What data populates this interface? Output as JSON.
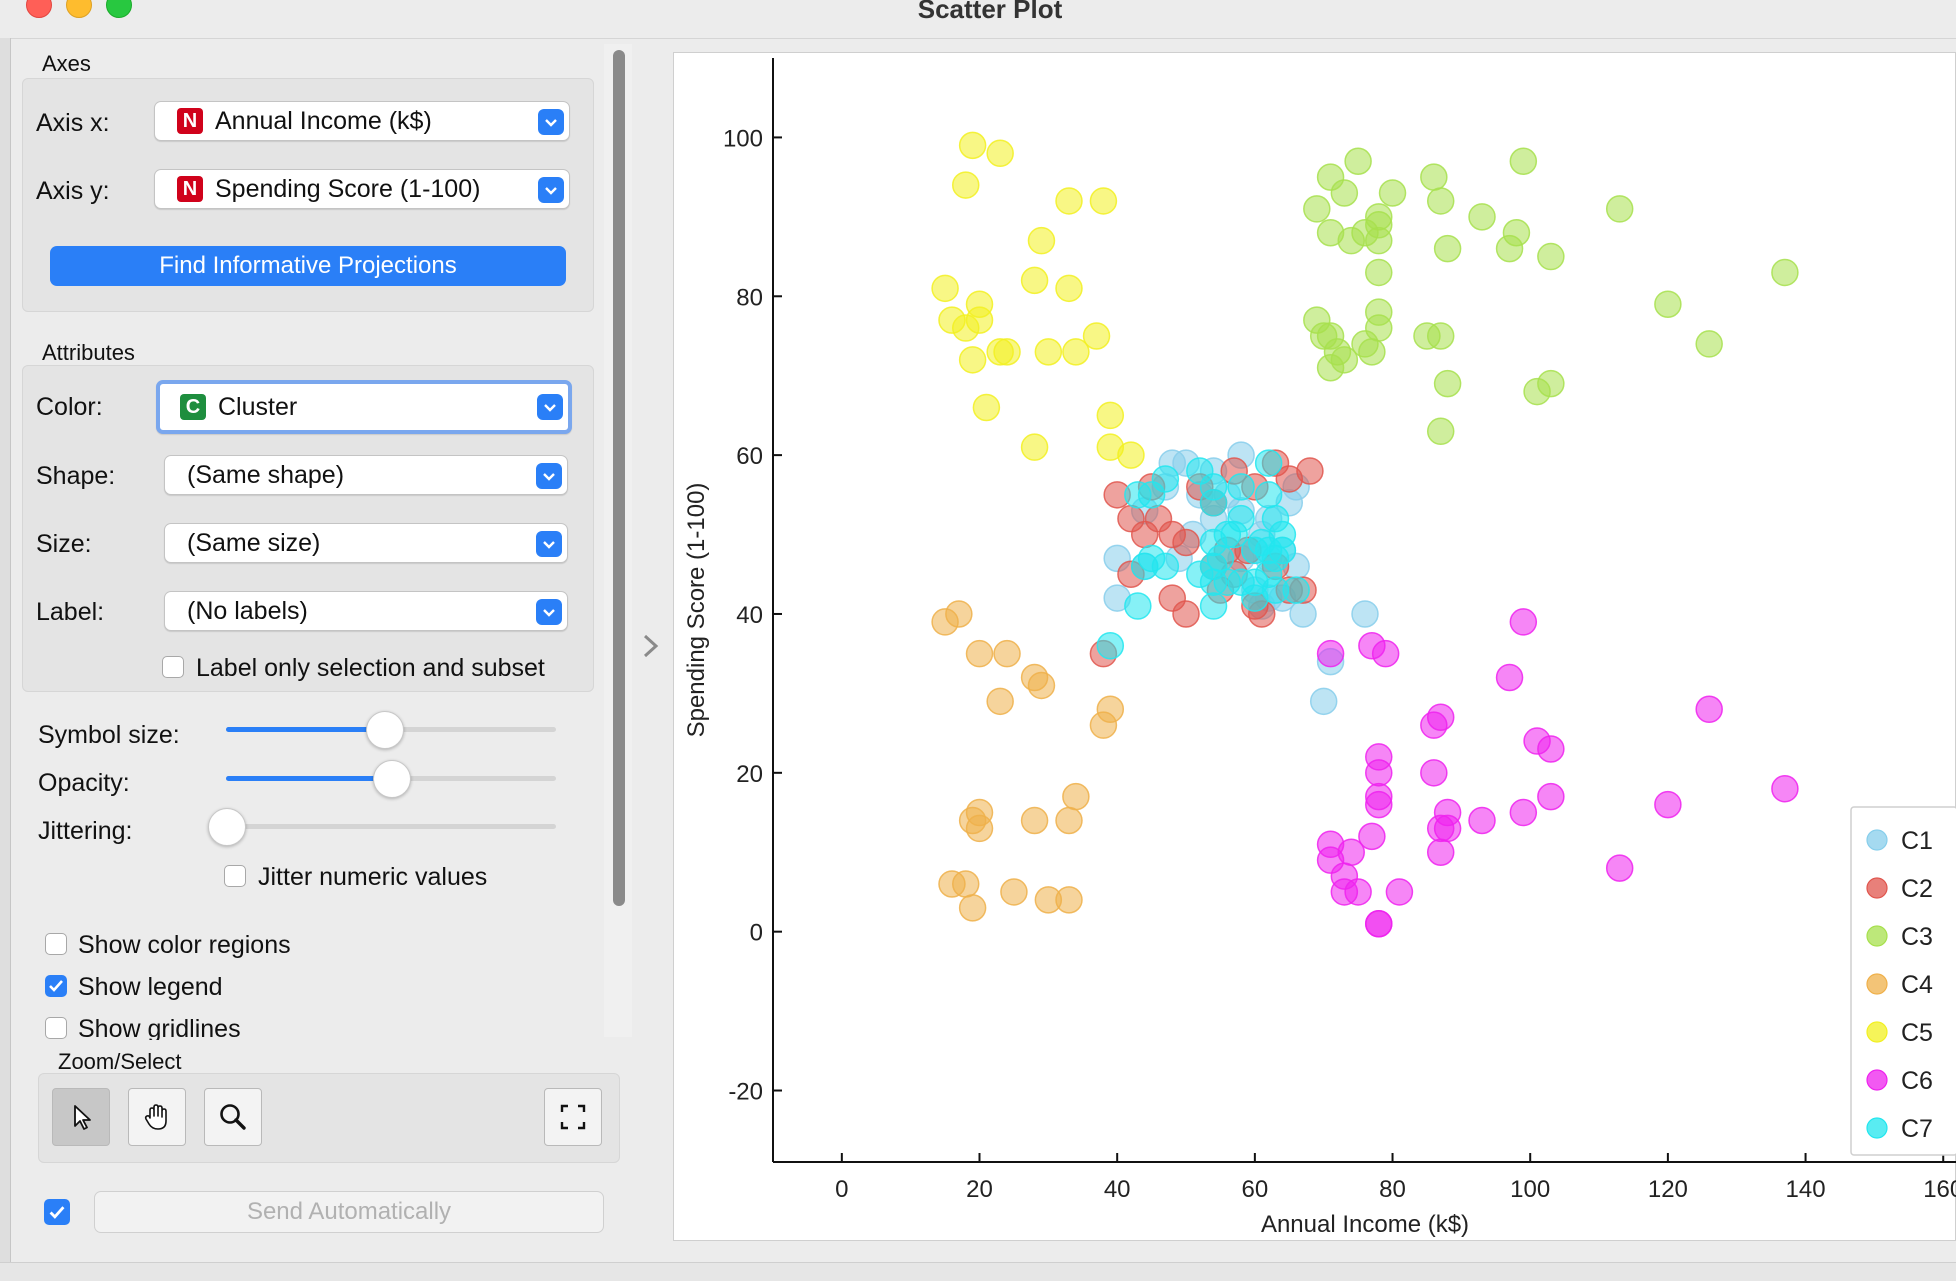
{
  "window": {
    "title": "Scatter Plot"
  },
  "axes_section": {
    "label": "Axes",
    "axis_x_label": "Axis x:",
    "axis_x_badge": "N",
    "axis_x_value": "Annual Income (k$)",
    "axis_y_label": "Axis y:",
    "axis_y_badge": "N",
    "axis_y_value": "Spending Score (1-100)",
    "find_button": "Find Informative Projections"
  },
  "attributes_section": {
    "label": "Attributes",
    "color_label": "Color:",
    "color_badge": "C",
    "color_value": "Cluster",
    "shape_label": "Shape:",
    "shape_value": "(Same shape)",
    "size_label": "Size:",
    "size_value": "(Same size)",
    "label_label": "Label:",
    "label_value": "(No labels)",
    "label_only_selection": "Label only selection and subset"
  },
  "sliders": {
    "symbol_size_label": "Symbol size:",
    "symbol_size_level": 0.48,
    "opacity_label": "Opacity:",
    "opacity_level": 0.5,
    "jittering_label": "Jittering:",
    "jittering_level": 0.0,
    "jitter_numeric": "Jitter numeric values"
  },
  "options": {
    "show_color_regions": "Show color regions",
    "show_color_regions_checked": false,
    "show_legend": "Show legend",
    "show_legend_checked": true,
    "show_gridlines": "Show gridlines",
    "show_gridlines_checked": false
  },
  "zoom_select": {
    "label": "Zoom/Select"
  },
  "send": {
    "label": "Send Automatically",
    "checked": true
  },
  "colors": {
    "accent": "#2a7ff7",
    "badge_numeric": "#d0021b",
    "badge_categorical": "#1e8e3e",
    "C1": "#87ceeb",
    "C2": "#e0564e",
    "C3": "#a7e04d",
    "C4": "#efb04a",
    "C5": "#f2f021",
    "C6": "#ee22ee",
    "C7": "#22e6ee"
  },
  "chart_data": {
    "type": "scatter",
    "xlabel": "Annual Income (k$)",
    "ylabel": "Spending Score (1-100)",
    "xlim": [
      -10,
      162
    ],
    "ylim": [
      -29,
      110
    ],
    "xticks": [
      "0",
      "20",
      "40",
      "60",
      "80",
      "100",
      "120",
      "140",
      "160"
    ],
    "yticks": [
      "-20",
      "0",
      "20",
      "40",
      "60",
      "80",
      "100"
    ],
    "xtick_values": [
      0,
      20,
      40,
      60,
      80,
      100,
      120,
      140,
      160
    ],
    "ytick_values": [
      -20,
      0,
      20,
      40,
      60,
      80,
      100
    ],
    "grid": false,
    "legend_position": "bottom-right",
    "series": [
      {
        "name": "C1",
        "color": "#87ceeb",
        "points": [
          [
            48,
            59
          ],
          [
            50,
            59
          ],
          [
            58,
            60
          ],
          [
            54,
            58
          ],
          [
            56,
            55
          ],
          [
            44,
            53
          ],
          [
            47,
            56
          ],
          [
            52,
            55
          ],
          [
            58,
            53
          ],
          [
            61,
            50
          ],
          [
            62,
            52
          ],
          [
            54,
            52
          ],
          [
            51,
            50
          ],
          [
            60,
            48
          ],
          [
            58,
            47
          ],
          [
            62,
            47
          ],
          [
            64,
            48
          ],
          [
            66,
            46
          ],
          [
            40,
            47
          ],
          [
            44,
            46
          ],
          [
            49,
            47
          ],
          [
            60,
            43
          ],
          [
            62,
            42
          ],
          [
            64,
            42
          ],
          [
            61,
            41
          ],
          [
            67,
            40
          ],
          [
            40,
            42
          ],
          [
            76,
            40
          ],
          [
            71,
            34
          ],
          [
            70,
            29
          ],
          [
            66,
            56
          ],
          [
            65,
            54
          ]
        ]
      },
      {
        "name": "C2",
        "color": "#e0564e",
        "points": [
          [
            40,
            55
          ],
          [
            42,
            52
          ],
          [
            46,
            52
          ],
          [
            48,
            50
          ],
          [
            50,
            49
          ],
          [
            44,
            50
          ],
          [
            45,
            56
          ],
          [
            52,
            56
          ],
          [
            57,
            58
          ],
          [
            60,
            56
          ],
          [
            63,
            59
          ],
          [
            65,
            57
          ],
          [
            68,
            58
          ],
          [
            54,
            54
          ],
          [
            56,
            48
          ],
          [
            59,
            48
          ],
          [
            63,
            46
          ],
          [
            54,
            46
          ],
          [
            57,
            45
          ],
          [
            42,
            45
          ],
          [
            55,
            43
          ],
          [
            60,
            41
          ],
          [
            65,
            43
          ],
          [
            67,
            43
          ],
          [
            61,
            40
          ],
          [
            48,
            42
          ],
          [
            50,
            40
          ],
          [
            38,
            35
          ]
        ]
      },
      {
        "name": "C3",
        "color": "#a7e04d",
        "points": [
          [
            71,
            95
          ],
          [
            73,
            93
          ],
          [
            75,
            97
          ],
          [
            69,
            91
          ],
          [
            71,
            88
          ],
          [
            74,
            87
          ],
          [
            76,
            88
          ],
          [
            78,
            90
          ],
          [
            80,
            93
          ],
          [
            78,
            87
          ],
          [
            78,
            89
          ],
          [
            78,
            83
          ],
          [
            86,
            95
          ],
          [
            87,
            92
          ],
          [
            93,
            90
          ],
          [
            97,
            86
          ],
          [
            98,
            88
          ],
          [
            99,
            97
          ],
          [
            88,
            86
          ],
          [
            103,
            85
          ],
          [
            113,
            91
          ],
          [
            137,
            83
          ],
          [
            120,
            79
          ],
          [
            126,
            74
          ],
          [
            69,
            77
          ],
          [
            71,
            75
          ],
          [
            70,
            75
          ],
          [
            72,
            73
          ],
          [
            71,
            71
          ],
          [
            73,
            72
          ],
          [
            76,
            74
          ],
          [
            77,
            73
          ],
          [
            78,
            76
          ],
          [
            78,
            78
          ],
          [
            85,
            75
          ],
          [
            87,
            75
          ],
          [
            88,
            69
          ],
          [
            87,
            63
          ],
          [
            101,
            68
          ],
          [
            103,
            69
          ]
        ]
      },
      {
        "name": "C4",
        "color": "#efb04a",
        "points": [
          [
            15,
            39
          ],
          [
            17,
            40
          ],
          [
            20,
            35
          ],
          [
            24,
            35
          ],
          [
            28,
            32
          ],
          [
            29,
            31
          ],
          [
            23,
            29
          ],
          [
            39,
            28
          ],
          [
            38,
            26
          ],
          [
            34,
            17
          ],
          [
            19,
            14
          ],
          [
            20,
            15
          ],
          [
            20,
            13
          ],
          [
            28,
            14
          ],
          [
            33,
            14
          ],
          [
            16,
            6
          ],
          [
            18,
            6
          ],
          [
            19,
            3
          ],
          [
            25,
            5
          ],
          [
            30,
            4
          ],
          [
            33,
            4
          ]
        ]
      },
      {
        "name": "C5",
        "color": "#f2f021",
        "points": [
          [
            19,
            99
          ],
          [
            23,
            98
          ],
          [
            18,
            94
          ],
          [
            33,
            92
          ],
          [
            38,
            92
          ],
          [
            29,
            87
          ],
          [
            15,
            81
          ],
          [
            20,
            79
          ],
          [
            16,
            77
          ],
          [
            18,
            76
          ],
          [
            20,
            77
          ],
          [
            28,
            82
          ],
          [
            33,
            81
          ],
          [
            23,
            73
          ],
          [
            24,
            73
          ],
          [
            30,
            73
          ],
          [
            34,
            73
          ],
          [
            37,
            75
          ],
          [
            19,
            72
          ],
          [
            21,
            66
          ],
          [
            28,
            61
          ],
          [
            39,
            65
          ],
          [
            39,
            61
          ],
          [
            42,
            60
          ]
        ]
      },
      {
        "name": "C6",
        "color": "#ee22ee",
        "points": [
          [
            71,
            35
          ],
          [
            77,
            36
          ],
          [
            79,
            35
          ],
          [
            99,
            39
          ],
          [
            97,
            32
          ],
          [
            126,
            28
          ],
          [
            87,
            27
          ],
          [
            86,
            26
          ],
          [
            101,
            24
          ],
          [
            103,
            23
          ],
          [
            78,
            22
          ],
          [
            78,
            20
          ],
          [
            78,
            17
          ],
          [
            78,
            16
          ],
          [
            86,
            20
          ],
          [
            137,
            18
          ],
          [
            103,
            17
          ],
          [
            120,
            16
          ],
          [
            88,
            15
          ],
          [
            99,
            15
          ],
          [
            93,
            14
          ],
          [
            87,
            13
          ],
          [
            88,
            13
          ],
          [
            71,
            11
          ],
          [
            77,
            12
          ],
          [
            74,
            10
          ],
          [
            71,
            9
          ],
          [
            73,
            7
          ],
          [
            73,
            5
          ],
          [
            75,
            5
          ],
          [
            81,
            5
          ],
          [
            87,
            10
          ],
          [
            113,
            8
          ],
          [
            78,
            1
          ],
          [
            78,
            1
          ]
        ]
      },
      {
        "name": "C7",
        "color": "#22e6ee",
        "points": [
          [
            43,
            55
          ],
          [
            45,
            55
          ],
          [
            47,
            57
          ],
          [
            52,
            58
          ],
          [
            54,
            56
          ],
          [
            58,
            56
          ],
          [
            62,
            59
          ],
          [
            62,
            55
          ],
          [
            54,
            54
          ],
          [
            56,
            50
          ],
          [
            54,
            49
          ],
          [
            55,
            47
          ],
          [
            54,
            46
          ],
          [
            52,
            45
          ],
          [
            54,
            44
          ],
          [
            56,
            44
          ],
          [
            58,
            44
          ],
          [
            60,
            44
          ],
          [
            62,
            45
          ],
          [
            63,
            47
          ],
          [
            64,
            48
          ],
          [
            62,
            48
          ],
          [
            61,
            49
          ],
          [
            60,
            48
          ],
          [
            64,
            50
          ],
          [
            57,
            50
          ],
          [
            58,
            52
          ],
          [
            63,
            52
          ],
          [
            44,
            46
          ],
          [
            45,
            47
          ],
          [
            47,
            46
          ],
          [
            43,
            41
          ],
          [
            54,
            41
          ],
          [
            60,
            42
          ],
          [
            63,
            43
          ],
          [
            66,
            43
          ],
          [
            39,
            36
          ]
        ]
      }
    ]
  }
}
